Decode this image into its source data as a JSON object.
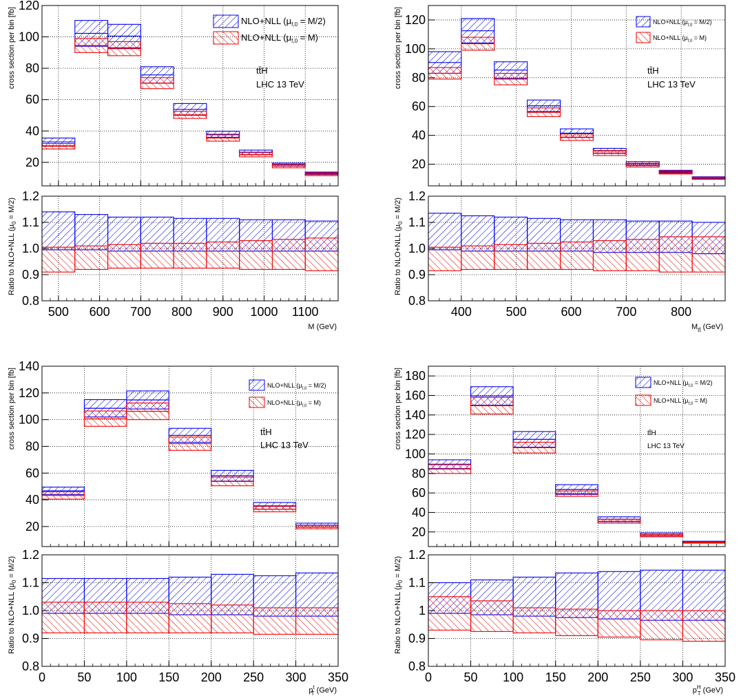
{
  "legend_labels": {
    "blue_prefix": "NLO+NLL (μ",
    "red_prefix": "NLO+NLL (μ",
    "sub": "f,0",
    "blue_suffix": " = M/2)",
    "red_suffix": " = M)"
  },
  "colors": {
    "blue": "#0000ee",
    "red": "#ee0000",
    "grid": "#000000"
  },
  "chart_data": [
    {
      "type": "bar",
      "panel": "top-left",
      "process": "tt̄H",
      "energy": "LHC 13 TeV",
      "ylabel_top": "cross section per bin [fb]",
      "ylabel_ratio": "Ratio to NLO+NLL (μ",
      "ylabel_ratio_sub": "0",
      "ylabel_ratio_suffix": " = M/2)",
      "xlabel_main": "M",
      "xlabel_sub": "",
      "xlabel_unit": " (GeV)",
      "xlim": [
        460,
        1180
      ],
      "ylim_top": [
        5,
        120
      ],
      "ylim_ratio": [
        0.8,
        1.2
      ],
      "xticks": [
        500,
        600,
        700,
        800,
        900,
        1000,
        1100
      ],
      "yticks_top": [
        20,
        40,
        60,
        80,
        100,
        120
      ],
      "yticks_ratio": [
        "0.8",
        "0.9",
        "1.0",
        "1.1",
        "1.2"
      ],
      "bins": [
        460,
        540,
        620,
        700,
        780,
        860,
        940,
        1020,
        1100,
        1180
      ],
      "series": [
        {
          "name": "NLO+NLL (μf,0 = M/2)",
          "low": [
            30.5,
            94.0,
            93.0,
            70.5,
            50.0,
            36.0,
            24.8,
            17.5,
            12.2
          ],
          "high": [
            35.5,
            110.5,
            108.0,
            81.0,
            57.5,
            39.8,
            27.8,
            19.5,
            13.8
          ],
          "ratio_low": [
            0.995,
            0.995,
            0.99,
            0.99,
            0.99,
            0.99,
            0.99,
            0.99,
            0.99
          ],
          "ratio_high": [
            1.14,
            1.13,
            1.12,
            1.12,
            1.115,
            1.115,
            1.11,
            1.11,
            1.105
          ]
        },
        {
          "name": "NLO+NLL (μf,0 = M)",
          "low": [
            28.5,
            90.0,
            88.0,
            67.0,
            48.0,
            33.5,
            23.5,
            16.5,
            11.5
          ],
          "high": [
            32.0,
            99.0,
            97.0,
            74.0,
            52.5,
            37.5,
            26.5,
            18.8,
            13.4
          ],
          "ratio_low": [
            0.91,
            0.92,
            0.925,
            0.925,
            0.925,
            0.925,
            0.92,
            0.92,
            0.915
          ],
          "ratio_high": [
            1.005,
            1.01,
            1.015,
            1.02,
            1.02,
            1.025,
            1.03,
            1.035,
            1.04
          ]
        }
      ]
    },
    {
      "type": "bar",
      "panel": "top-right",
      "process": "tt̄H",
      "energy": "LHC 13 TeV",
      "ylabel_top": "cross section per bin [fb]",
      "ylabel_ratio": "Ratio to NLO+NLL (μ",
      "ylabel_ratio_sub": "0",
      "ylabel_ratio_suffix": " = M/2)",
      "xlabel_main": "M",
      "xlabel_sub": "tt̄",
      "xlabel_unit": " (GeV)",
      "xlim": [
        340,
        880
      ],
      "ylim_top": [
        5,
        130
      ],
      "ylim_ratio": [
        0.8,
        1.2
      ],
      "xticks": [
        400,
        500,
        600,
        700,
        800
      ],
      "yticks_top": [
        20,
        40,
        60,
        80,
        100,
        120
      ],
      "yticks_ratio": [
        "0.8",
        "0.9",
        "1.0",
        "1.1",
        "1.2"
      ],
      "bins": [
        340,
        400,
        460,
        520,
        580,
        640,
        700,
        760,
        820,
        880
      ],
      "series": [
        {
          "name": "NLO+NLL (μf,0 = M/2)",
          "low": [
            83.0,
            104.0,
            79.5,
            56.5,
            38.5,
            27.5,
            19.0,
            13.8,
            10.0
          ],
          "high": [
            98.0,
            121.0,
            91.0,
            64.5,
            44.5,
            31.0,
            21.8,
            15.8,
            11.3
          ],
          "ratio_low": [
            0.995,
            0.99,
            0.99,
            0.99,
            0.99,
            0.985,
            0.985,
            0.985,
            0.98
          ],
          "ratio_high": [
            1.135,
            1.125,
            1.12,
            1.115,
            1.11,
            1.11,
            1.105,
            1.105,
            1.1
          ]
        },
        {
          "name": "NLO+NLL (μf,0 = M)",
          "low": [
            79.0,
            99.0,
            75.0,
            53.0,
            36.5,
            26.0,
            18.0,
            13.2,
            9.5
          ],
          "high": [
            87.0,
            108.0,
            83.0,
            59.0,
            41.0,
            29.5,
            20.7,
            15.3,
            11.0
          ],
          "ratio_low": [
            0.915,
            0.92,
            0.92,
            0.92,
            0.92,
            0.915,
            0.915,
            0.91,
            0.91
          ],
          "ratio_high": [
            1.005,
            1.01,
            1.015,
            1.02,
            1.025,
            1.03,
            1.035,
            1.045,
            1.045
          ]
        }
      ]
    },
    {
      "type": "bar",
      "panel": "bottom-left",
      "process": "tt̄H",
      "energy": "LHC 13 TeV",
      "ylabel_top": "cross section per bin [fb]",
      "ylabel_ratio": "Ratio to NLO+NLL (μ",
      "ylabel_ratio_sub": "0",
      "ylabel_ratio_suffix": " = M/2)",
      "xlabel_main": "p",
      "xlabel_sub": "T",
      "xlabel_sup": "t",
      "xlabel_unit": " (GeV)",
      "xlim": [
        0,
        350
      ],
      "ylim_top": [
        5,
        140
      ],
      "ylim_ratio": [
        0.8,
        1.2
      ],
      "xticks": [
        0,
        50,
        100,
        150,
        200,
        250,
        300,
        350
      ],
      "yticks_top": [
        20,
        40,
        60,
        80,
        100,
        120,
        140
      ],
      "yticks_ratio": [
        "0.8",
        "0.9",
        "1.0",
        "1.1",
        "1.2"
      ],
      "bins": [
        0,
        50,
        100,
        150,
        200,
        250,
        300,
        350
      ],
      "series": [
        {
          "name": "NLO+NLL (μf,0 = M/2)",
          "low": [
            44.0,
            102.0,
            108.0,
            83.0,
            54.0,
            33.0,
            19.5
          ],
          "high": [
            49.5,
            115.0,
            121.5,
            93.5,
            62.0,
            38.0,
            22.5
          ],
          "ratio_low": [
            0.99,
            0.99,
            0.99,
            0.985,
            0.985,
            0.98,
            0.98
          ],
          "ratio_high": [
            1.115,
            1.115,
            1.115,
            1.12,
            1.13,
            1.125,
            1.135
          ]
        },
        {
          "name": "NLO+NLL (μf,0 = M)",
          "low": [
            40.5,
            95.0,
            100.0,
            77.0,
            50.5,
            31.0,
            18.3
          ],
          "high": [
            46.0,
            106.5,
            112.5,
            87.0,
            57.0,
            35.0,
            20.8
          ],
          "ratio_low": [
            0.92,
            0.92,
            0.92,
            0.92,
            0.92,
            0.915,
            0.915
          ],
          "ratio_high": [
            1.03,
            1.03,
            1.03,
            1.025,
            1.02,
            1.01,
            1.01
          ]
        }
      ]
    },
    {
      "type": "bar",
      "panel": "bottom-right",
      "process": "tt̄H",
      "energy": "LHC 13 TeV",
      "ylabel_top": "cross section per bin [fb]",
      "ylabel_ratio": "Ratio to NLO+NLL (μ",
      "ylabel_ratio_sub": "0",
      "ylabel_ratio_suffix": " = M/2)",
      "xlabel_main": "p",
      "xlabel_sub": "T",
      "xlabel_sup": "H",
      "xlabel_unit": " (GeV)",
      "xlim": [
        0,
        350
      ],
      "ylim_top": [
        5,
        190
      ],
      "ylim_ratio": [
        0.8,
        1.2
      ],
      "xticks": [
        0,
        50,
        100,
        150,
        200,
        250,
        300,
        350
      ],
      "yticks_top": [
        20,
        40,
        60,
        80,
        100,
        120,
        140,
        160,
        180
      ],
      "yticks_ratio": [
        "0.8",
        "0.9",
        "1",
        "1.1",
        "1.2"
      ],
      "bins": [
        0,
        50,
        100,
        150,
        200,
        250,
        300,
        350
      ],
      "series": [
        {
          "name": "NLO+NLL (μf,0 = M/2)",
          "low": [
            85.0,
            150.0,
            107.0,
            58.5,
            30.5,
            16.0,
            9.0
          ],
          "high": [
            94.0,
            169.0,
            123.0,
            68.5,
            35.5,
            19.0,
            10.5
          ],
          "ratio_low": [
            0.99,
            0.985,
            0.98,
            0.975,
            0.97,
            0.965,
            0.965
          ],
          "ratio_high": [
            1.1,
            1.11,
            1.12,
            1.135,
            1.14,
            1.145,
            1.145
          ]
        },
        {
          "name": "NLO+NLL (μf,0 = M)",
          "low": [
            80.0,
            141.0,
            101.0,
            56.5,
            29.0,
            15.0,
            8.5
          ],
          "high": [
            89.0,
            158.0,
            112.0,
            62.0,
            33.0,
            17.5,
            10.0
          ],
          "ratio_low": [
            0.93,
            0.925,
            0.92,
            0.91,
            0.905,
            0.895,
            0.89
          ],
          "ratio_high": [
            1.05,
            1.035,
            1.01,
            1.005,
            1.0,
            1.0,
            1.0
          ]
        }
      ]
    }
  ]
}
